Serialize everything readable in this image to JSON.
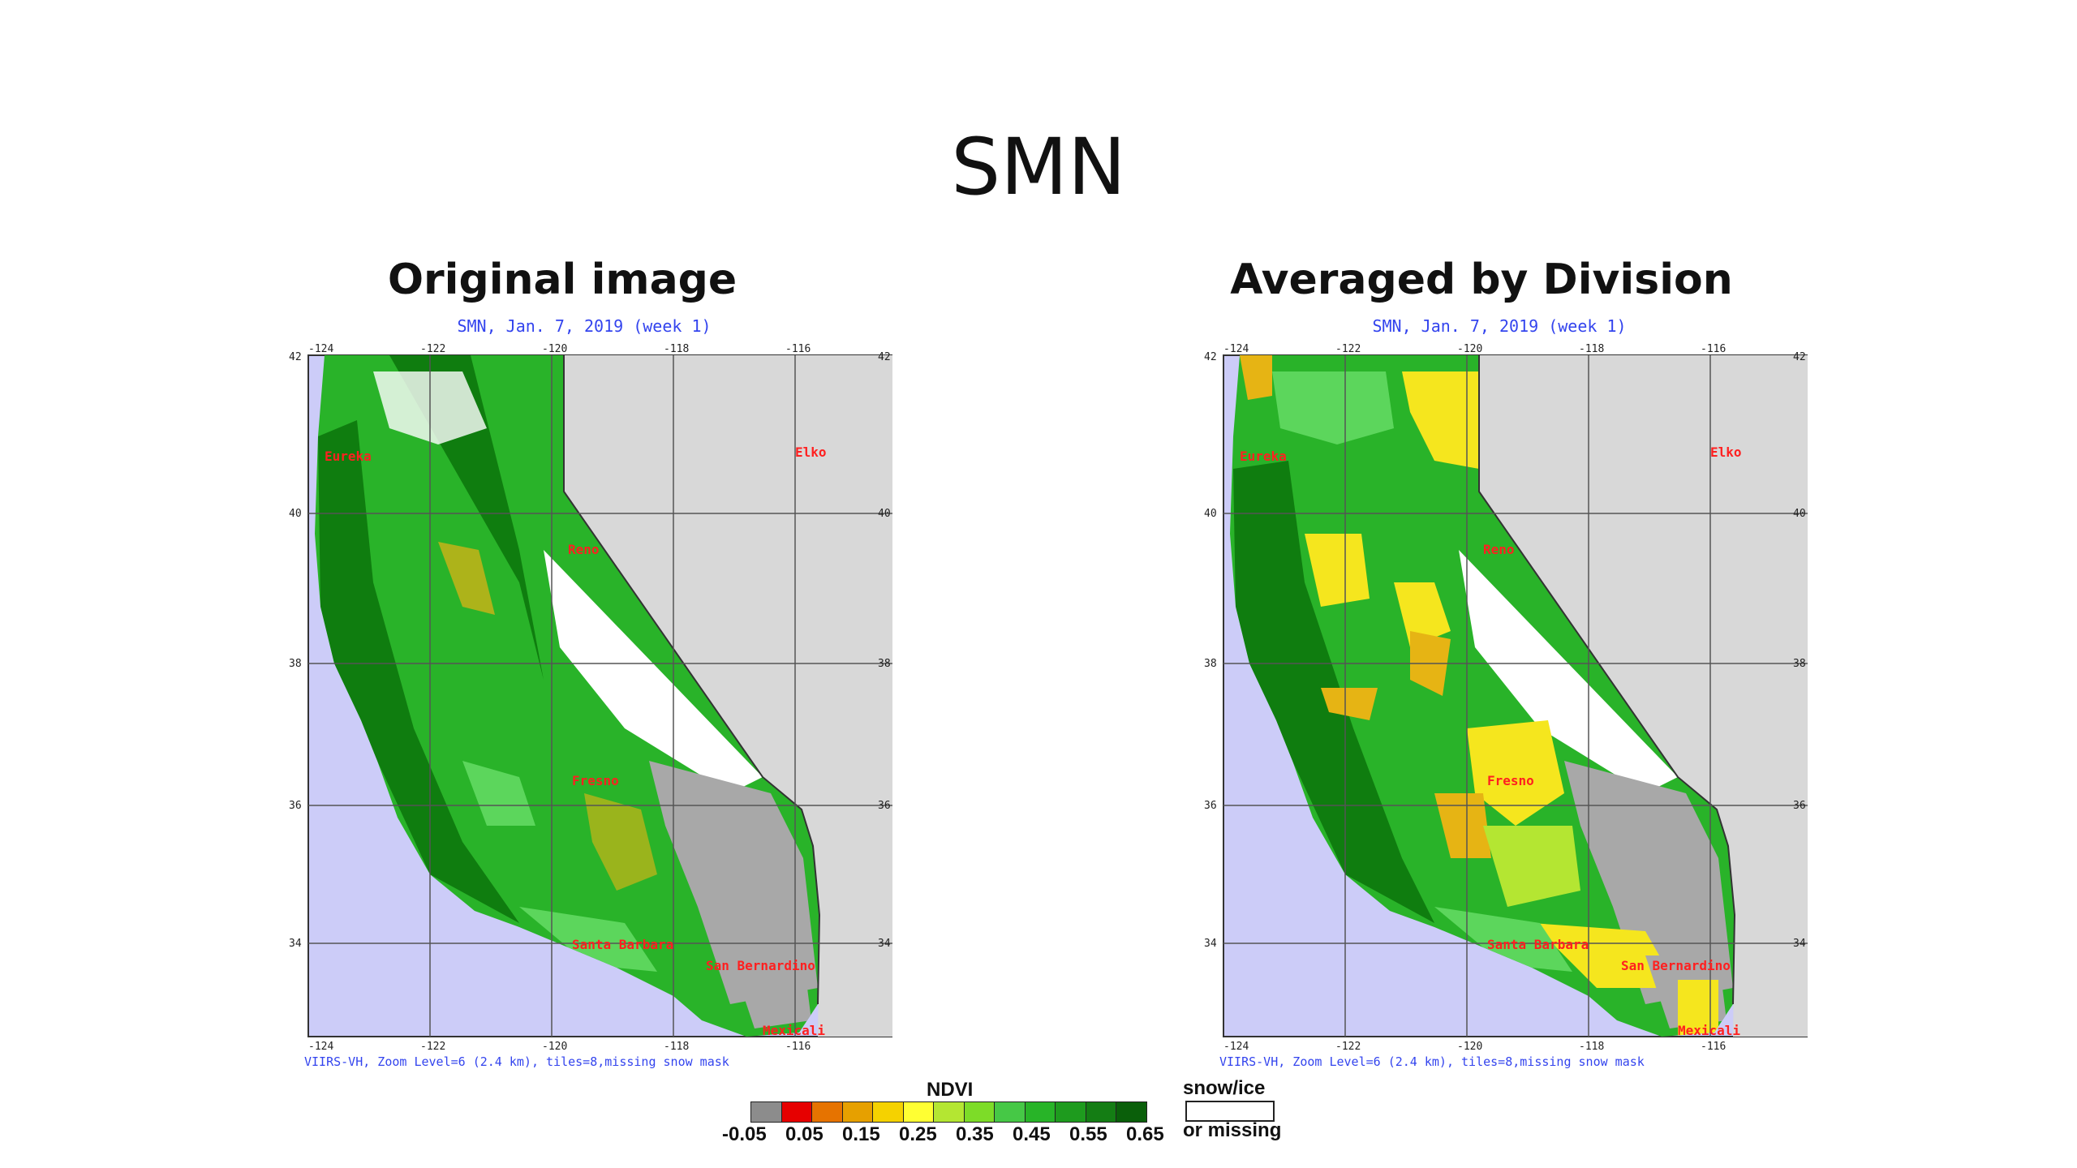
{
  "slide": {
    "title": "SMN"
  },
  "colors": {
    "ocean": "#ccccf8",
    "nevada": "#d8d8d8",
    "gray": "#a8a8a8",
    "land_dark": "#0f7d0f",
    "land_mid": "#29b329",
    "land_light": "#5cd65c",
    "yellow": "#f5e61e",
    "orange": "#e6b414",
    "grid": "#555555",
    "city": "#ff2020"
  },
  "panels": [
    {
      "heading": "Original image",
      "header": "SMN, Jan. 7, 2019 (week 1)",
      "footer": "VIIRS-VH, Zoom Level=6 (2.4 km), tiles=8,missing snow mask"
    },
    {
      "heading": "Averaged by Division",
      "header": "SMN, Jan. 7, 2019 (week 1)",
      "footer": "VIIRS-VH, Zoom Level=6 (2.4 km), tiles=8,missing snow mask"
    }
  ],
  "axes": {
    "lon_ticks": [
      "-124",
      "-122",
      "-120",
      "-118",
      "-116"
    ],
    "lat_ticks": [
      "42",
      "40",
      "38",
      "36",
      "34"
    ]
  },
  "cities": [
    "Eureka",
    "Elko",
    "Reno",
    "Fresno",
    "Santa Barbara",
    "San Bernardino",
    "Mexicali"
  ],
  "legend": {
    "title": "NDVI",
    "ticks": [
      "-0.05",
      "0.05",
      "0.15",
      "0.25",
      "0.35",
      "0.45",
      "0.55",
      "0.65"
    ],
    "swatches": [
      "#8c8c8c",
      "#e60000",
      "#e67300",
      "#e6a000",
      "#f5d200",
      "#ffff33",
      "#b4e632",
      "#7ddc28",
      "#46c846",
      "#28b428",
      "#1e9b1e",
      "#147d14",
      "#0a5f0a"
    ],
    "snow_label_1": "snow/ice",
    "snow_label_2": "or missing"
  }
}
